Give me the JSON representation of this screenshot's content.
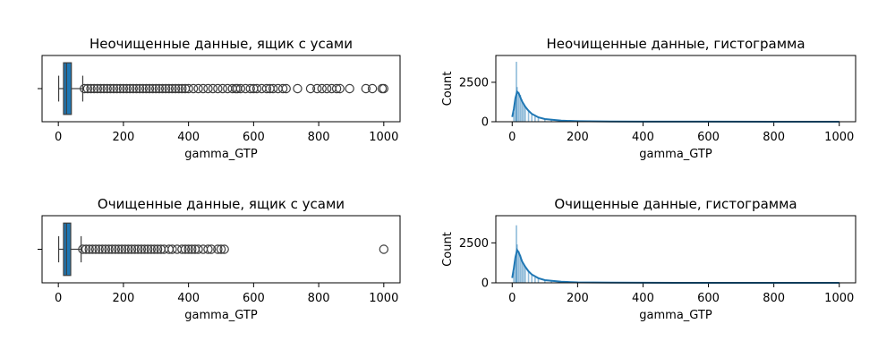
{
  "chart_data": [
    {
      "type": "box",
      "title": "Неочищенные данные, ящик с усами",
      "xlabel": "gamma_GTP",
      "ylabel": "",
      "xlim": [
        -50,
        1050
      ],
      "xticks": [
        0,
        200,
        400,
        600,
        800,
        1000
      ],
      "box": {
        "whisker_low": 1,
        "q1": 16,
        "median": 25,
        "q3": 40,
        "whisker_high": 75
      },
      "outliers": [
        80,
        90,
        100,
        110,
        120,
        130,
        140,
        150,
        160,
        170,
        180,
        190,
        200,
        210,
        220,
        230,
        240,
        250,
        260,
        270,
        280,
        290,
        300,
        310,
        320,
        330,
        340,
        350,
        360,
        370,
        380,
        390,
        400,
        415,
        430,
        445,
        460,
        475,
        490,
        505,
        520,
        535,
        545,
        550,
        560,
        575,
        590,
        600,
        610,
        625,
        640,
        650,
        660,
        675,
        690,
        700,
        735,
        775,
        795,
        810,
        825,
        840,
        855,
        865,
        895,
        945,
        965,
        995,
        1000
      ],
      "color": "#1f77b4"
    },
    {
      "type": "histogram",
      "title": "Неочищенные данные, гистограмма",
      "xlabel": "gamma_GTP",
      "ylabel": "Count",
      "xlim": [
        -50,
        1050
      ],
      "ylim": [
        0,
        4200
      ],
      "xticks": [
        0,
        200,
        400,
        600,
        800,
        1000
      ],
      "yticks": [
        0,
        2500
      ],
      "bins": [
        {
          "x": 5,
          "count": 600
        },
        {
          "x": 10,
          "count": 1400
        },
        {
          "x": 13,
          "count": 3800
        },
        {
          "x": 15,
          "count": 2200
        },
        {
          "x": 20,
          "count": 1900
        },
        {
          "x": 25,
          "count": 1700
        },
        {
          "x": 30,
          "count": 1400
        },
        {
          "x": 35,
          "count": 1100
        },
        {
          "x": 40,
          "count": 900
        },
        {
          "x": 50,
          "count": 650
        },
        {
          "x": 60,
          "count": 450
        },
        {
          "x": 70,
          "count": 330
        },
        {
          "x": 80,
          "count": 240
        },
        {
          "x": 100,
          "count": 150
        },
        {
          "x": 120,
          "count": 100
        },
        {
          "x": 150,
          "count": 60
        },
        {
          "x": 200,
          "count": 30
        },
        {
          "x": 300,
          "count": 12
        },
        {
          "x": 400,
          "count": 6
        },
        {
          "x": 600,
          "count": 3
        },
        {
          "x": 800,
          "count": 2
        },
        {
          "x": 1000,
          "count": 2
        }
      ],
      "kde": [
        [
          0,
          300
        ],
        [
          5,
          800
        ],
        [
          10,
          1500
        ],
        [
          15,
          1900
        ],
        [
          20,
          1800
        ],
        [
          25,
          1550
        ],
        [
          30,
          1300
        ],
        [
          40,
          950
        ],
        [
          50,
          700
        ],
        [
          60,
          500
        ],
        [
          80,
          280
        ],
        [
          100,
          170
        ],
        [
          150,
          70
        ],
        [
          200,
          35
        ],
        [
          300,
          12
        ],
        [
          400,
          6
        ],
        [
          600,
          3
        ],
        [
          800,
          2
        ],
        [
          1000,
          2
        ]
      ],
      "color": "#1f77b4"
    },
    {
      "type": "box",
      "title": "Очищенные данные, ящик с усами",
      "xlabel": "gamma_GTP",
      "ylabel": "",
      "xlim": [
        -50,
        1050
      ],
      "xticks": [
        0,
        200,
        400,
        600,
        800,
        1000
      ],
      "box": {
        "whisker_low": 1,
        "q1": 16,
        "median": 25,
        "q3": 38,
        "whisker_high": 70
      },
      "outliers": [
        75,
        85,
        95,
        105,
        115,
        125,
        135,
        145,
        155,
        165,
        175,
        185,
        195,
        205,
        215,
        225,
        235,
        245,
        255,
        265,
        275,
        285,
        295,
        305,
        315,
        325,
        340,
        350,
        365,
        380,
        390,
        400,
        410,
        420,
        430,
        445,
        460,
        470,
        490,
        500,
        510,
        1000
      ],
      "color": "#1f77b4"
    },
    {
      "type": "histogram",
      "title": "Очищенные данные, гистограмма",
      "xlabel": "gamma_GTP",
      "ylabel": "Count",
      "xlim": [
        -50,
        1050
      ],
      "ylim": [
        0,
        4200
      ],
      "xticks": [
        0,
        200,
        400,
        600,
        800,
        1000
      ],
      "yticks": [
        0,
        2500
      ],
      "bins": [
        {
          "x": 5,
          "count": 700
        },
        {
          "x": 10,
          "count": 1500
        },
        {
          "x": 13,
          "count": 3600
        },
        {
          "x": 15,
          "count": 2400
        },
        {
          "x": 20,
          "count": 2000
        },
        {
          "x": 25,
          "count": 1750
        },
        {
          "x": 30,
          "count": 1450
        },
        {
          "x": 35,
          "count": 1150
        },
        {
          "x": 40,
          "count": 950
        },
        {
          "x": 50,
          "count": 680
        },
        {
          "x": 60,
          "count": 470
        },
        {
          "x": 70,
          "count": 340
        },
        {
          "x": 80,
          "count": 250
        },
        {
          "x": 100,
          "count": 150
        },
        {
          "x": 120,
          "count": 95
        },
        {
          "x": 150,
          "count": 55
        },
        {
          "x": 200,
          "count": 25
        },
        {
          "x": 300,
          "count": 8
        },
        {
          "x": 400,
          "count": 4
        },
        {
          "x": 500,
          "count": 2
        },
        {
          "x": 1000,
          "count": 1
        }
      ],
      "kde": [
        [
          0,
          300
        ],
        [
          5,
          900
        ],
        [
          10,
          1600
        ],
        [
          15,
          2050
        ],
        [
          20,
          1900
        ],
        [
          25,
          1650
        ],
        [
          30,
          1350
        ],
        [
          40,
          1000
        ],
        [
          50,
          720
        ],
        [
          60,
          520
        ],
        [
          80,
          290
        ],
        [
          100,
          170
        ],
        [
          150,
          65
        ],
        [
          200,
          30
        ],
        [
          300,
          9
        ],
        [
          400,
          4
        ],
        [
          500,
          2
        ],
        [
          1000,
          1
        ]
      ],
      "color": "#1f77b4"
    }
  ]
}
